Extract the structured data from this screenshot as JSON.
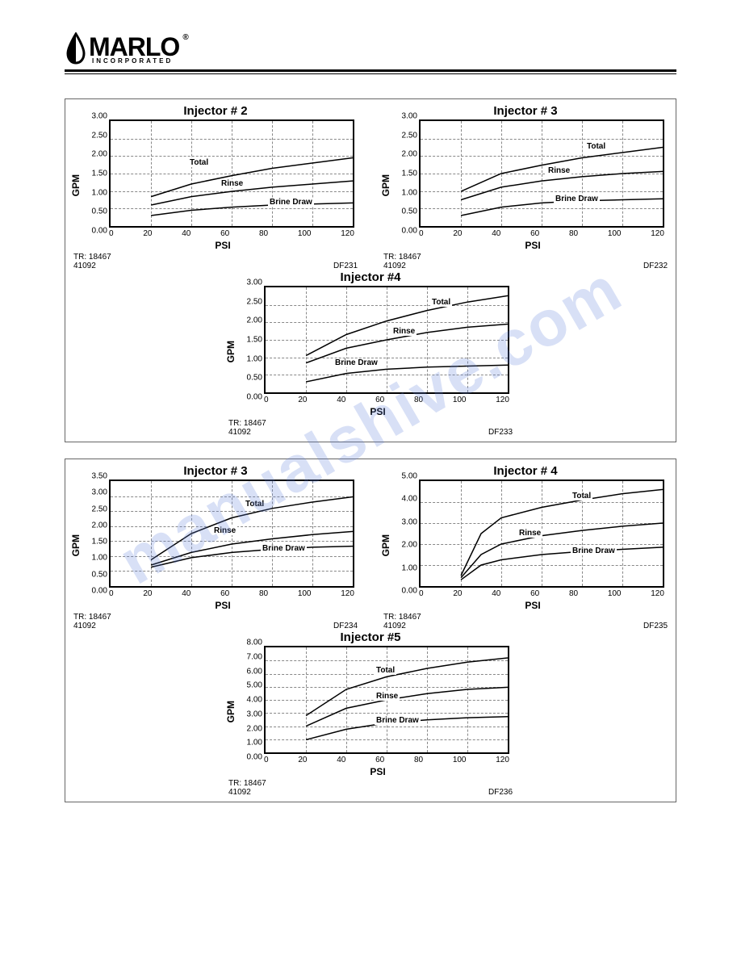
{
  "logo": {
    "brand": "MARLO",
    "sub": "INCORPORATED",
    "reg": "®"
  },
  "watermark": "manualshive.com",
  "panels": [
    {
      "charts": [
        {
          "title": "Injector # 2",
          "ylabel": "GPM",
          "xlabel": "PSI",
          "ymax": 3.0,
          "ystep": 0.5,
          "xticks": [
            "0",
            "20",
            "40",
            "60",
            "80",
            "100",
            "120"
          ],
          "tr": "TR: 18467",
          "date": "41092",
          "df": "DF231",
          "series": [
            {
              "label": "Total",
              "label_x": 32,
              "label_y": 35,
              "points": [
                [
                  16.7,
                  72
                ],
                [
                  33.3,
                  60
                ],
                [
                  50,
                  52
                ],
                [
                  66.7,
                  45
                ],
                [
                  83.3,
                  40
                ],
                [
                  100,
                  35
                ]
              ]
            },
            {
              "label": "Rinse",
              "label_x": 45,
              "label_y": 55,
              "points": [
                [
                  16.7,
                  80
                ],
                [
                  33.3,
                  72
                ],
                [
                  50,
                  67
                ],
                [
                  66.7,
                  63
                ],
                [
                  83.3,
                  60
                ],
                [
                  100,
                  57
                ]
              ]
            },
            {
              "label": "Brine Draw",
              "label_x": 65,
              "label_y": 73,
              "points": [
                [
                  16.7,
                  90
                ],
                [
                  33.3,
                  85
                ],
                [
                  50,
                  82
                ],
                [
                  66.7,
                  80
                ],
                [
                  83.3,
                  79
                ],
                [
                  100,
                  78
                ]
              ]
            }
          ]
        },
        {
          "title": "Injector # 3",
          "ylabel": "GPM",
          "xlabel": "PSI",
          "ymax": 3.0,
          "ystep": 0.5,
          "xticks": [
            "0",
            "20",
            "40",
            "60",
            "80",
            "100",
            "120"
          ],
          "tr": "TR: 18467",
          "date": "41092",
          "df": "DF232",
          "series": [
            {
              "label": "Total",
              "label_x": 68,
              "label_y": 20,
              "points": [
                [
                  16.7,
                  67
                ],
                [
                  33.3,
                  50
                ],
                [
                  50,
                  42
                ],
                [
                  66.7,
                  35
                ],
                [
                  83.3,
                  30
                ],
                [
                  100,
                  25
                ]
              ]
            },
            {
              "label": "Rinse",
              "label_x": 52,
              "label_y": 43,
              "points": [
                [
                  16.7,
                  75
                ],
                [
                  33.3,
                  63
                ],
                [
                  50,
                  57
                ],
                [
                  66.7,
                  53
                ],
                [
                  83.3,
                  50
                ],
                [
                  100,
                  48
                ]
              ]
            },
            {
              "label": "Brine Draw",
              "label_x": 55,
              "label_y": 70,
              "points": [
                [
                  16.7,
                  90
                ],
                [
                  33.3,
                  82
                ],
                [
                  50,
                  78
                ],
                [
                  66.7,
                  76
                ],
                [
                  83.3,
                  75
                ],
                [
                  100,
                  74
                ]
              ]
            }
          ]
        },
        {
          "title": "Injector #4",
          "ylabel": "GPM",
          "xlabel": "PSI",
          "ymax": 3.0,
          "ystep": 0.5,
          "xticks": [
            "0",
            "20",
            "40",
            "60",
            "80",
            "100",
            "120"
          ],
          "tr": "TR: 18467",
          "date": "41092",
          "df": "DF233",
          "series": [
            {
              "label": "Total",
              "label_x": 68,
              "label_y": 10,
              "points": [
                [
                  16.7,
                  65
                ],
                [
                  33.3,
                  45
                ],
                [
                  50,
                  32
                ],
                [
                  66.7,
                  22
                ],
                [
                  83.3,
                  14
                ],
                [
                  100,
                  8
                ]
              ]
            },
            {
              "label": "Rinse",
              "label_x": 52,
              "label_y": 38,
              "points": [
                [
                  16.7,
                  72
                ],
                [
                  33.3,
                  58
                ],
                [
                  50,
                  50
                ],
                [
                  66.7,
                  43
                ],
                [
                  83.3,
                  38
                ],
                [
                  100,
                  35
                ]
              ]
            },
            {
              "label": "Brine Draw",
              "label_x": 28,
              "label_y": 68,
              "points": [
                [
                  16.7,
                  90
                ],
                [
                  33.3,
                  82
                ],
                [
                  50,
                  78
                ],
                [
                  66.7,
                  76
                ],
                [
                  83.3,
                  75
                ],
                [
                  100,
                  74
                ]
              ]
            }
          ],
          "center": true
        }
      ]
    },
    {
      "charts": [
        {
          "title": "Injector # 3",
          "ylabel": "GPM",
          "xlabel": "PSI",
          "ymax": 3.5,
          "ystep": 0.5,
          "xticks": [
            "0",
            "20",
            "40",
            "60",
            "80",
            "100",
            "120"
          ],
          "tr": "TR: 18467",
          "date": "41092",
          "df": "DF234",
          "series": [
            {
              "label": "Total",
              "label_x": 55,
              "label_y": 18,
              "points": [
                [
                  16.7,
                  75
                ],
                [
                  33.3,
                  50
                ],
                [
                  50,
                  35
                ],
                [
                  66.7,
                  26
                ],
                [
                  83.3,
                  20
                ],
                [
                  100,
                  15
                ]
              ]
            },
            {
              "label": "Rinse",
              "label_x": 42,
              "label_y": 43,
              "points": [
                [
                  16.7,
                  80
                ],
                [
                  33.3,
                  68
                ],
                [
                  50,
                  60
                ],
                [
                  66.7,
                  55
                ],
                [
                  83.3,
                  51
                ],
                [
                  100,
                  48
                ]
              ]
            },
            {
              "label": "Brine Draw",
              "label_x": 62,
              "label_y": 60,
              "points": [
                [
                  16.7,
                  82
                ],
                [
                  33.3,
                  73
                ],
                [
                  50,
                  68
                ],
                [
                  66.7,
                  65
                ],
                [
                  83.3,
                  63
                ],
                [
                  100,
                  62
                ]
              ]
            }
          ]
        },
        {
          "title": "Injector # 4",
          "ylabel": "GPM",
          "xlabel": "PSI",
          "ymax": 5.0,
          "ystep": 1.0,
          "xticks": [
            "0",
            "20",
            "40",
            "60",
            "80",
            "100",
            "120"
          ],
          "tr": "TR: 18467",
          "date": "41092",
          "df": "DF235",
          "series": [
            {
              "label": "Total",
              "label_x": 62,
              "label_y": 10,
              "points": [
                [
                  16.7,
                  90
                ],
                [
                  25,
                  50
                ],
                [
                  33.3,
                  35
                ],
                [
                  50,
                  25
                ],
                [
                  66.7,
                  18
                ],
                [
                  83.3,
                  12
                ],
                [
                  100,
                  8
                ]
              ]
            },
            {
              "label": "Rinse",
              "label_x": 40,
              "label_y": 45,
              "points": [
                [
                  16.7,
                  92
                ],
                [
                  25,
                  70
                ],
                [
                  33.3,
                  60
                ],
                [
                  50,
                  52
                ],
                [
                  66.7,
                  47
                ],
                [
                  83.3,
                  43
                ],
                [
                  100,
                  40
                ]
              ]
            },
            {
              "label": "Brine Draw",
              "label_x": 62,
              "label_y": 62,
              "points": [
                [
                  16.7,
                  94
                ],
                [
                  25,
                  80
                ],
                [
                  33.3,
                  75
                ],
                [
                  50,
                  70
                ],
                [
                  66.7,
                  67
                ],
                [
                  83.3,
                  65
                ],
                [
                  100,
                  63
                ]
              ]
            }
          ]
        },
        {
          "title": "Injector #5",
          "ylabel": "GPM",
          "xlabel": "PSI",
          "ymax": 8.0,
          "ystep": 1.0,
          "xticks": [
            "0",
            "20",
            "40",
            "60",
            "80",
            "100",
            "120"
          ],
          "tr": "TR: 18467",
          "date": "41092",
          "df": "DF236",
          "series": [
            {
              "label": "Total",
              "label_x": 45,
              "label_y": 18,
              "points": [
                [
                  16.7,
                  65
                ],
                [
                  33.3,
                  40
                ],
                [
                  50,
                  28
                ],
                [
                  66.7,
                  20
                ],
                [
                  83.3,
                  14
                ],
                [
                  100,
                  10
                ]
              ]
            },
            {
              "label": "Rinse",
              "label_x": 45,
              "label_y": 42,
              "points": [
                [
                  16.7,
                  75
                ],
                [
                  33.3,
                  58
                ],
                [
                  50,
                  50
                ],
                [
                  66.7,
                  44
                ],
                [
                  83.3,
                  40
                ],
                [
                  100,
                  38
                ]
              ]
            },
            {
              "label": "Brine Draw",
              "label_x": 45,
              "label_y": 65,
              "points": [
                [
                  16.7,
                  88
                ],
                [
                  33.3,
                  78
                ],
                [
                  50,
                  72
                ],
                [
                  66.7,
                  69
                ],
                [
                  83.3,
                  67
                ],
                [
                  100,
                  66
                ]
              ]
            }
          ],
          "center": true
        }
      ]
    }
  ]
}
